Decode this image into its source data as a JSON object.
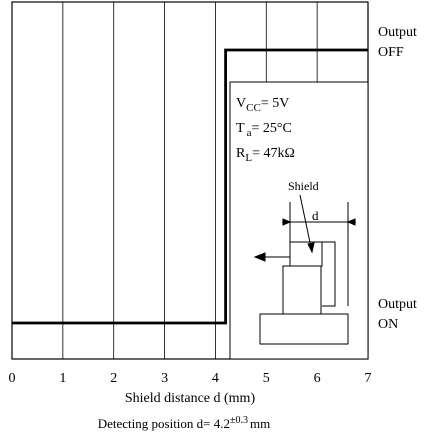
{
  "chart_data": {
    "type": "line",
    "xlabel": "Shield distance d (mm)",
    "ylabel": "",
    "xlim": [
      0,
      7
    ],
    "x_ticks": [
      "0",
      "1",
      "2",
      "3",
      "4",
      "5",
      "6",
      "7"
    ],
    "y_levels": [
      {
        "line1": "Output",
        "line2": "OFF"
      },
      {
        "line1": "Output",
        "line2": "ON"
      }
    ],
    "series": [
      {
        "points": [
          {
            "x": 0,
            "state": "ON"
          },
          {
            "x": 4.2,
            "state": "ON"
          },
          {
            "x": 4.2,
            "state": "OFF"
          },
          {
            "x": 7,
            "state": "OFF"
          }
        ]
      }
    ],
    "grid": true,
    "conditions": {
      "vcc": {
        "symbol": "V",
        "sub": "CC",
        "value": "= 5V"
      },
      "ta": {
        "symbol": "T",
        "sub": "a",
        "value": "= 25°C"
      },
      "rl": {
        "symbol": "R",
        "sub": "L",
        "value": "= 47kΩ"
      }
    },
    "inset": {
      "shield_label": "Shield",
      "dim_label": "d"
    },
    "caption": {
      "prefix": "Detecting position d",
      "eq": "= 4.2",
      "tol": "±0.3",
      "unit": "mm"
    }
  }
}
